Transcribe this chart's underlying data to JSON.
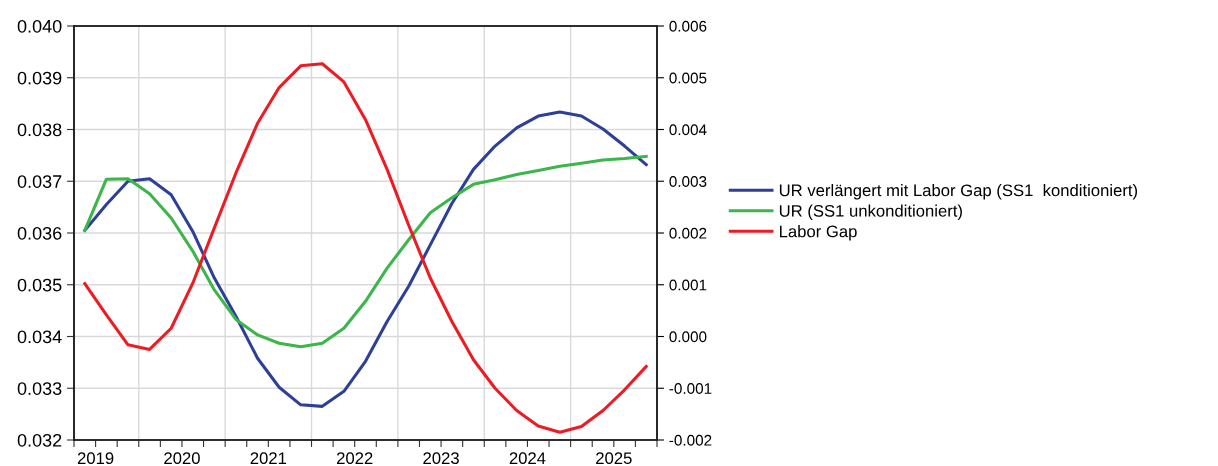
{
  "chart_data": {
    "type": "line",
    "x": [
      2019.375,
      2019.625,
      2019.875,
      2020.125,
      2020.375,
      2020.625,
      2020.875,
      2021.125,
      2021.375,
      2021.625,
      2021.875,
      2022.125,
      2022.375,
      2022.625,
      2022.875,
      2023.125,
      2023.375,
      2023.625,
      2023.875,
      2024.125,
      2024.375,
      2024.625,
      2024.875,
      2025.125,
      2025.375,
      2025.625,
      2025.875
    ],
    "series": [
      {
        "name": "UR verlängert mit Labor Gap (SS1  konditioniert)",
        "color": "#2e3f98",
        "values": [
          0.03605,
          0.03655,
          0.037,
          0.03705,
          0.03674,
          0.03603,
          0.03513,
          0.03439,
          0.03358,
          0.03302,
          0.03268,
          0.03265,
          0.03294,
          0.03352,
          0.03429,
          0.03497,
          0.03577,
          0.03657,
          0.03723,
          0.03768,
          0.03803,
          0.03826,
          0.03834,
          0.03826,
          0.03801,
          0.03768,
          0.03732
        ]
      },
      {
        "name": "UR (SS1 unkonditioniert)",
        "color": "#3cb54a",
        "values": [
          0.03605,
          0.03704,
          0.03705,
          0.03676,
          0.03629,
          0.03565,
          0.0349,
          0.03433,
          0.03403,
          0.03387,
          0.0338,
          0.03387,
          0.03416,
          0.03468,
          0.03532,
          0.03587,
          0.03639,
          0.03668,
          0.03694,
          0.03703,
          0.03713,
          0.03721,
          0.03729,
          0.03735,
          0.03741,
          0.03744,
          0.03748
        ]
      },
      {
        "name": "Labor Gap",
        "color": "#ed1c24",
        "axis": "y2",
        "values": [
          0.00102,
          0.00042,
          -0.00016,
          -0.00025,
          0.00016,
          0.00103,
          0.0021,
          0.00316,
          0.00412,
          0.00481,
          0.00523,
          0.00527,
          0.00492,
          0.00419,
          0.00323,
          0.00215,
          0.00113,
          0.00029,
          -0.00045,
          -0.001,
          -0.00143,
          -0.00173,
          -0.00185,
          -0.00174,
          -0.00143,
          -0.00103,
          -0.00058
        ]
      }
    ],
    "xlim": [
      2019.25,
      2026.0
    ],
    "xticks": [
      {
        "value": 2019.25,
        "label": null
      },
      {
        "value": 2019.5,
        "label": "2019"
      },
      {
        "value": 2019.75,
        "label": null
      },
      {
        "value": 2020.0,
        "label": null
      },
      {
        "value": 2020.25,
        "label": null
      },
      {
        "value": 2020.5,
        "label": "2020"
      },
      {
        "value": 2020.75,
        "label": null
      },
      {
        "value": 2021.0,
        "label": null
      },
      {
        "value": 2021.25,
        "label": null
      },
      {
        "value": 2021.5,
        "label": "2021"
      },
      {
        "value": 2021.75,
        "label": null
      },
      {
        "value": 2022.0,
        "label": null
      },
      {
        "value": 2022.25,
        "label": null
      },
      {
        "value": 2022.5,
        "label": "2022"
      },
      {
        "value": 2022.75,
        "label": null
      },
      {
        "value": 2023.0,
        "label": null
      },
      {
        "value": 2023.25,
        "label": null
      },
      {
        "value": 2023.5,
        "label": "2023"
      },
      {
        "value": 2023.75,
        "label": null
      },
      {
        "value": 2024.0,
        "label": null
      },
      {
        "value": 2024.25,
        "label": null
      },
      {
        "value": 2024.5,
        "label": "2024"
      },
      {
        "value": 2024.75,
        "label": null
      },
      {
        "value": 2025.0,
        "label": null
      },
      {
        "value": 2025.25,
        "label": null
      },
      {
        "value": 2025.5,
        "label": "2025"
      },
      {
        "value": 2025.75,
        "label": null
      },
      {
        "value": 2026.0,
        "label": null
      }
    ],
    "ylim": [
      0.032,
      0.04
    ],
    "yticks": [
      {
        "value": 0.032,
        "label": "0.032"
      },
      {
        "value": 0.033,
        "label": "0.033"
      },
      {
        "value": 0.034,
        "label": "0.034"
      },
      {
        "value": 0.035,
        "label": "0.035"
      },
      {
        "value": 0.036,
        "label": "0.036"
      },
      {
        "value": 0.037,
        "label": "0.037"
      },
      {
        "value": 0.038,
        "label": "0.038"
      },
      {
        "value": 0.039,
        "label": "0.039"
      },
      {
        "value": 0.04,
        "label": "0.040"
      }
    ],
    "y2lim": [
      -0.002,
      0.006
    ],
    "y2ticks": [
      {
        "value": -0.002,
        "label": "-0.002"
      },
      {
        "value": -0.001,
        "label": "-0.001"
      },
      {
        "value": 0.0,
        "label": "0.000"
      },
      {
        "value": 0.001,
        "label": "0.001"
      },
      {
        "value": 0.002,
        "label": "0.002"
      },
      {
        "value": 0.003,
        "label": "0.003"
      },
      {
        "value": 0.004,
        "label": "0.004"
      },
      {
        "value": 0.005,
        "label": "0.005"
      },
      {
        "value": 0.006,
        "label": "0.006"
      }
    ],
    "grid": true,
    "legend": "right",
    "marker": "none",
    "line_style": "solid"
  }
}
